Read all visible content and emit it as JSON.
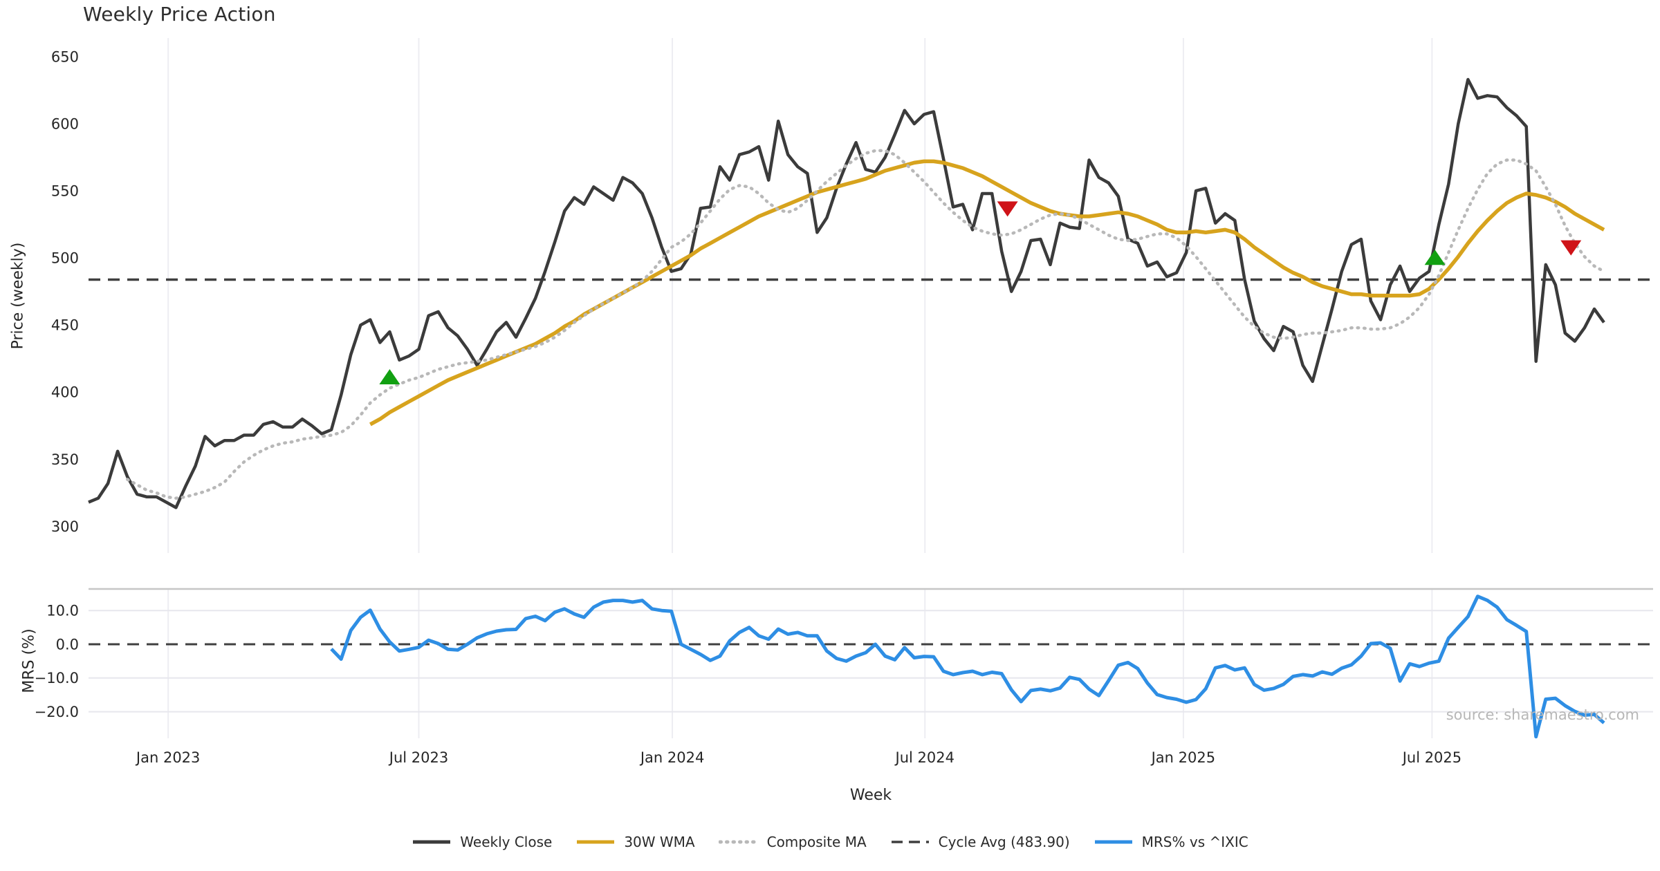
{
  "title": "Weekly Price Action",
  "watermark": "source: sharemaestro.com",
  "axes": {
    "price_axis_title": "Price (weekly)",
    "mrs_axis_title": "MRS (%)",
    "x_axis_title": "Week",
    "price_ticks": [
      650,
      600,
      550,
      500,
      450,
      400,
      350,
      300
    ],
    "mrs_ticks": [
      {
        "v": 10,
        "label": "10.0"
      },
      {
        "v": 0,
        "label": "0.0"
      },
      {
        "v": -10,
        "label": "−10.0"
      },
      {
        "v": -20,
        "label": "−20.0"
      }
    ],
    "x_ticks": [
      {
        "label": "Jan 2023",
        "week": 8.2
      },
      {
        "label": "Jul 2023",
        "week": 34.0
      },
      {
        "label": "Jan 2024",
        "week": 60.1
      },
      {
        "label": "Jul 2024",
        "week": 86.1
      },
      {
        "label": "Jan 2025",
        "week": 112.7
      },
      {
        "label": "Jul 2025",
        "week": 138.3
      }
    ]
  },
  "colors": {
    "close": "#3b3b3b",
    "wma": "#d7a31d",
    "composite": "#b8b8b8",
    "cycle": "#3f3f3f",
    "mrs": "#2e8ee4",
    "buy_marker": "#12a012",
    "sell_marker": "#cf1318",
    "gridline": "#ededf2",
    "mrs_gridline": "#e7e7ed",
    "mrs_top_spine": "#c6c6c6"
  },
  "legend": {
    "items": [
      {
        "label": "Weekly Close",
        "style": "solid",
        "color": "#3b3b3b"
      },
      {
        "label": "30W WMA",
        "style": "solid",
        "color": "#d7a31d"
      },
      {
        "label": "Composite MA",
        "style": "dotted",
        "color": "#b8b8b8"
      },
      {
        "label": "Cycle Avg (483.90)",
        "style": "dashed",
        "color": "#3f3f3f"
      },
      {
        "label": "MRS% vs ^IXIC",
        "style": "solid",
        "color": "#2e8ee4"
      }
    ]
  },
  "chart_data": {
    "type": "line",
    "title": "Weekly Price Action",
    "xlabel": "Week",
    "x_unit": "weekly index, week 0 ≈ Nov 2022, ~156 weeks through Nov 2025",
    "panels": [
      {
        "name": "price",
        "ylabel": "Price (weekly)",
        "ylim": [
          280,
          664
        ],
        "grid": "vertical-only"
      },
      {
        "name": "mrs",
        "ylabel": "MRS (%)",
        "ylim": [
          -28.5,
          16.4
        ],
        "grid": "horizontal+vertical"
      }
    ],
    "cycle_avg": 483.9,
    "series": [
      {
        "name": "Weekly Close",
        "panel": "price",
        "start_week": 0,
        "values": [
          318,
          321,
          332,
          356,
          337,
          324,
          322,
          322,
          318,
          314,
          330,
          345,
          367,
          360,
          364,
          364,
          368,
          368,
          376,
          378,
          374,
          374,
          380,
          375,
          369,
          372,
          398,
          428,
          450,
          454,
          437,
          445,
          424,
          427,
          432,
          457,
          460,
          448,
          442,
          432,
          420,
          432,
          445,
          452,
          441,
          455,
          470,
          490,
          512,
          535,
          545,
          540,
          553,
          548,
          543,
          560,
          556,
          548,
          530,
          508,
          490,
          492,
          503,
          537,
          538,
          568,
          558,
          577,
          579,
          583,
          558,
          602,
          577,
          568,
          563,
          519,
          530,
          552,
          570,
          586,
          566,
          564,
          575,
          592,
          610,
          600,
          607,
          609,
          574,
          538,
          540,
          521,
          548,
          548,
          505,
          475,
          490,
          513,
          514,
          495,
          526,
          523,
          522,
          573,
          560,
          556,
          546,
          514,
          511,
          494,
          497,
          486,
          489,
          504,
          550,
          552,
          526,
          533,
          528,
          484,
          453,
          440,
          431,
          449,
          445,
          420,
          408,
          435,
          462,
          490,
          510,
          514,
          468,
          454,
          480,
          494,
          475,
          485,
          490,
          525,
          555,
          600,
          633,
          619,
          621,
          620,
          612,
          606,
          598,
          423,
          495,
          480,
          444,
          438,
          448,
          462,
          452
        ]
      },
      {
        "name": "30W WMA",
        "panel": "price",
        "start_week": 29,
        "values": [
          376,
          380,
          385,
          389,
          393,
          397,
          401,
          405,
          409,
          412,
          415,
          418,
          421,
          424,
          427,
          430,
          433,
          436,
          440,
          444,
          449,
          453,
          458,
          462,
          466,
          470,
          474,
          478,
          482,
          486,
          490,
          494,
          498,
          502,
          507,
          511,
          515,
          519,
          523,
          527,
          531,
          534,
          537,
          540,
          543,
          546,
          549,
          551,
          553,
          555,
          557,
          559,
          562,
          565,
          567,
          569,
          571,
          572,
          572,
          571,
          569,
          567,
          564,
          561,
          557,
          553,
          549,
          545,
          541,
          538,
          535,
          533,
          532,
          531,
          531,
          532,
          533,
          534,
          533,
          531,
          528,
          525,
          521,
          519,
          519,
          520,
          519,
          520,
          521,
          519,
          514,
          508,
          503,
          498,
          493,
          489,
          486,
          482,
          479,
          477,
          475,
          473,
          473,
          472,
          472,
          472,
          472,
          472,
          473,
          477,
          484,
          492,
          501,
          511,
          520,
          528,
          535,
          541,
          545,
          548,
          547,
          545,
          542,
          538,
          533,
          529,
          525,
          521
        ]
      },
      {
        "name": "Composite MA",
        "panel": "price",
        "start_week": 4,
        "values": [
          335,
          331,
          327,
          325,
          322,
          321,
          322,
          324,
          326,
          329,
          333,
          341,
          348,
          353,
          357,
          360,
          362,
          363,
          365,
          366,
          367,
          368,
          370,
          375,
          383,
          392,
          398,
          403,
          406,
          409,
          411,
          414,
          417,
          419,
          421,
          422,
          423,
          424,
          426,
          428,
          430,
          432,
          434,
          437,
          441,
          446,
          452,
          457,
          462,
          466,
          470,
          474,
          478,
          483,
          490,
          499,
          508,
          512,
          518,
          526,
          535,
          544,
          551,
          554,
          553,
          548,
          541,
          536,
          534,
          537,
          543,
          550,
          557,
          563,
          569,
          574,
          578,
          580,
          580,
          577,
          571,
          564,
          557,
          549,
          541,
          534,
          528,
          523,
          520,
          518,
          517,
          518,
          521,
          525,
          529,
          532,
          533,
          532,
          529,
          525,
          521,
          517,
          514,
          513,
          514,
          516,
          518,
          518,
          515,
          509,
          501,
          492,
          483,
          474,
          465,
          456,
          449,
          444,
          441,
          440,
          441,
          443,
          444,
          444,
          445,
          446,
          448,
          448,
          447,
          447,
          448,
          451,
          456,
          463,
          473,
          487,
          504,
          521,
          537,
          551,
          563,
          570,
          573,
          573,
          570,
          565,
          553,
          540,
          524,
          511,
          501,
          494,
          490
        ]
      },
      {
        "name": "MRS% vs ^IXIC",
        "panel": "mrs",
        "start_week": 25,
        "values": [
          -1.4,
          -4.4,
          4.1,
          8.0,
          10.1,
          4.5,
          0.7,
          -2.0,
          -1.5,
          -0.9,
          1.2,
          0.2,
          -1.5,
          -1.7,
          0.0,
          1.9,
          3.1,
          3.9,
          4.3,
          4.4,
          7.6,
          8.3,
          7.0,
          9.5,
          10.5,
          9.0,
          8.0,
          11.0,
          12.5,
          13.0,
          13.0,
          12.5,
          13.0,
          10.5,
          10.0,
          9.8,
          0.0,
          -1.5,
          -3.0,
          -4.8,
          -3.5,
          1.0,
          3.5,
          5.0,
          2.5,
          1.5,
          4.5,
          3.0,
          3.5,
          2.5,
          2.5,
          -2.0,
          -4.2,
          -5.0,
          -3.5,
          -2.5,
          0.0,
          -3.5,
          -4.6,
          -1.0,
          -4.0,
          -3.6,
          -3.7,
          -8.0,
          -9.0,
          -8.4,
          -8.0,
          -9.0,
          -8.3,
          -8.7,
          -13.5,
          -17.0,
          -13.7,
          -13.3,
          -13.8,
          -13.0,
          -9.8,
          -10.4,
          -13.3,
          -15.2,
          -10.8,
          -6.2,
          -5.4,
          -7.2,
          -11.5,
          -14.9,
          -15.8,
          -16.3,
          -17.2,
          -16.4,
          -13.2,
          -7.0,
          -6.3,
          -7.6,
          -7.0,
          -11.9,
          -13.6,
          -13.1,
          -11.9,
          -9.5,
          -9.0,
          -9.4,
          -8.2,
          -8.9,
          -7.1,
          -6.1,
          -3.5,
          0.2,
          0.4,
          -1.2,
          -10.9,
          -5.8,
          -6.6,
          -5.6,
          -5.0,
          1.8,
          5.0,
          8.2,
          14.2,
          13.0,
          11.0,
          7.3,
          5.6,
          3.8,
          -27.4,
          -16.3,
          -16.0,
          -18.2,
          -19.9,
          -21.0,
          -20.8,
          -23.3
        ]
      }
    ],
    "markers": {
      "buy": [
        {
          "week": 31.0,
          "price": 411
        },
        {
          "week": 138.6,
          "price": 500
        }
      ],
      "sell": [
        {
          "week": 94.6,
          "price": 537
        },
        {
          "week": 152.6,
          "price": 508
        }
      ]
    },
    "legend_position": "bottom-center",
    "annotations": [
      "source: sharemaestro.com"
    ]
  }
}
